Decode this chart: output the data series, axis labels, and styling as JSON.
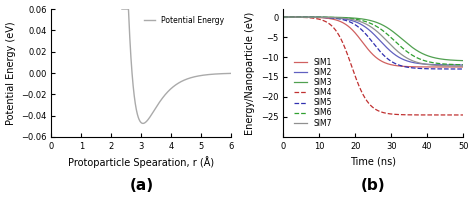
{
  "panel_a": {
    "xlabel": "Protoparticle Spearation, r (Å)",
    "ylabel": "Potential Energy (eV)",
    "xlim": [
      0,
      6
    ],
    "ylim": [
      -0.06,
      0.06
    ],
    "yticks": [
      -0.06,
      -0.04,
      -0.02,
      0.0,
      0.02,
      0.04,
      0.06
    ],
    "xticks": [
      0,
      1,
      2,
      3,
      4,
      5,
      6
    ],
    "line_color": "#aaaaaa",
    "legend_label": "Potential Energy",
    "morse_De": 0.0473,
    "morse_a": 1.9,
    "morse_re": 3.05,
    "r_start": 2.35,
    "r_end": 6.0
  },
  "panel_b": {
    "xlabel": "Time (ns)",
    "ylabel": "Energy/Nanoparticle (eV)",
    "xlim": [
      0,
      50
    ],
    "ylim": [
      -30,
      2
    ],
    "yticks": [
      0,
      -5,
      -10,
      -15,
      -20,
      -25
    ],
    "xticks": [
      0,
      10,
      20,
      30,
      40,
      50
    ],
    "simulations": [
      {
        "label": "SIM1",
        "color": "#d06060",
        "linestyle": "-",
        "t0": 22,
        "rate": 0.38,
        "final": -12.5
      },
      {
        "label": "SIM2",
        "color": "#6060c0",
        "linestyle": "-",
        "t0": 27,
        "rate": 0.32,
        "final": -12.0
      },
      {
        "label": "SIM3",
        "color": "#50a050",
        "linestyle": "-",
        "t0": 33,
        "rate": 0.28,
        "final": -11.0
      },
      {
        "label": "SIM4",
        "color": "#c03030",
        "linestyle": "--",
        "t0": 19,
        "rate": 0.42,
        "final": -24.5
      },
      {
        "label": "SIM5",
        "color": "#3030b0",
        "linestyle": "--",
        "t0": 25,
        "rate": 0.35,
        "final": -13.0
      },
      {
        "label": "SIM6",
        "color": "#30a030",
        "linestyle": "--",
        "t0": 31,
        "rate": 0.28,
        "final": -12.0
      },
      {
        "label": "SIM7",
        "color": "#909090",
        "linestyle": "-",
        "t0": 29,
        "rate": 0.3,
        "final": -12.3
      }
    ]
  },
  "label_fontsize": 7,
  "tick_fontsize": 6,
  "legend_fontsize": 5.5,
  "panel_label_fontsize": 11
}
